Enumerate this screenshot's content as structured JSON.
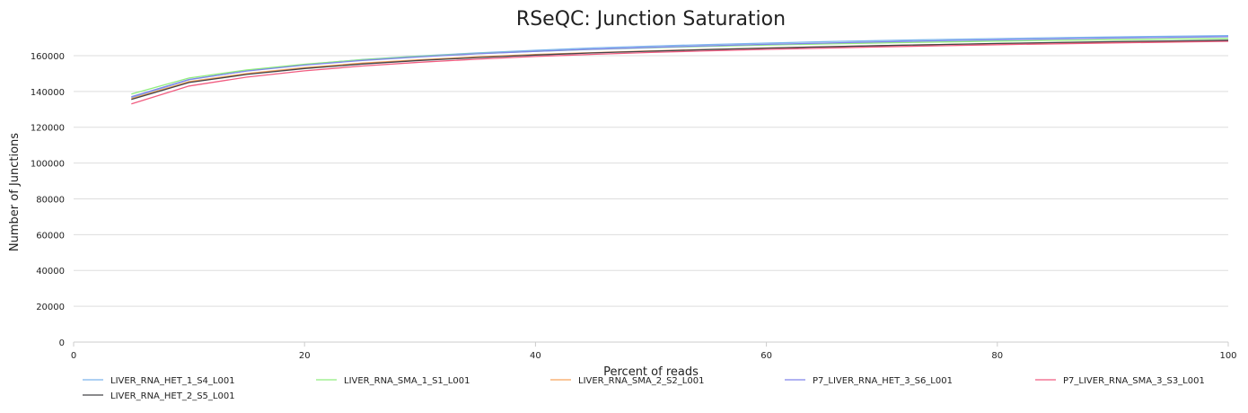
{
  "chart_data": {
    "type": "line",
    "title": "RSeQC: Junction Saturation",
    "xlabel": "Percent of reads",
    "ylabel": "Number of Junctions",
    "xlim": [
      0,
      100
    ],
    "ylim": [
      0,
      170000
    ],
    "x_ticks": [
      0,
      20,
      40,
      60,
      80,
      100
    ],
    "y_ticks": [
      0,
      20000,
      40000,
      60000,
      80000,
      100000,
      120000,
      140000,
      160000
    ],
    "grid": true,
    "legend_position": "bottom",
    "x": [
      5,
      10,
      15,
      20,
      25,
      30,
      35,
      40,
      45,
      50,
      55,
      60,
      65,
      70,
      75,
      80,
      85,
      90,
      95,
      100
    ],
    "series": [
      {
        "name": "LIVER_RNA_HET_1_S4_L001",
        "color": "#7cb5ec",
        "values": [
          136500,
          146500,
          151500,
          155000,
          157800,
          159800,
          161500,
          163000,
          164300,
          165300,
          166200,
          167000,
          167800,
          168400,
          169000,
          169500,
          170000,
          170400,
          170800,
          171200
        ]
      },
      {
        "name": "LIVER_RNA_SMA_1_S1_L001",
        "color": "#90ed7d",
        "values": [
          138500,
          147500,
          152000,
          155200,
          157700,
          159600,
          161100,
          162400,
          163500,
          164400,
          165200,
          165900,
          166500,
          167100,
          167600,
          168100,
          168500,
          168900,
          169300,
          169600
        ]
      },
      {
        "name": "LIVER_RNA_SMA_2_S2_L001",
        "color": "#f7a35c",
        "values": [
          136000,
          145500,
          150000,
          153300,
          155800,
          157700,
          159300,
          160600,
          161700,
          162700,
          163500,
          164300,
          165000,
          165600,
          166200,
          166700,
          167200,
          167600,
          168000,
          168400
        ]
      },
      {
        "name": "P7_LIVER_RNA_HET_3_S6_L001",
        "color": "#8085e9",
        "values": [
          137000,
          146700,
          151400,
          154700,
          157300,
          159300,
          161000,
          162400,
          163600,
          164600,
          165500,
          166300,
          167000,
          167700,
          168300,
          168800,
          169300,
          169800,
          170200,
          170600
        ]
      },
      {
        "name": "P7_LIVER_RNA_SMA_3_S3_L001",
        "color": "#f15c80",
        "values": [
          133000,
          143000,
          148000,
          151500,
          154200,
          156300,
          158000,
          159500,
          160700,
          161800,
          162700,
          163500,
          164200,
          164900,
          165500,
          166100,
          166600,
          167100,
          167500,
          168000
        ]
      },
      {
        "name": "LIVER_RNA_HET_2_S5_L001",
        "color": "#434348",
        "values": [
          135500,
          145000,
          149500,
          152800,
          155300,
          157300,
          158900,
          160300,
          161500,
          162500,
          163400,
          164200,
          164900,
          165600,
          166200,
          166800,
          167300,
          167800,
          168200,
          168600
        ]
      }
    ]
  }
}
